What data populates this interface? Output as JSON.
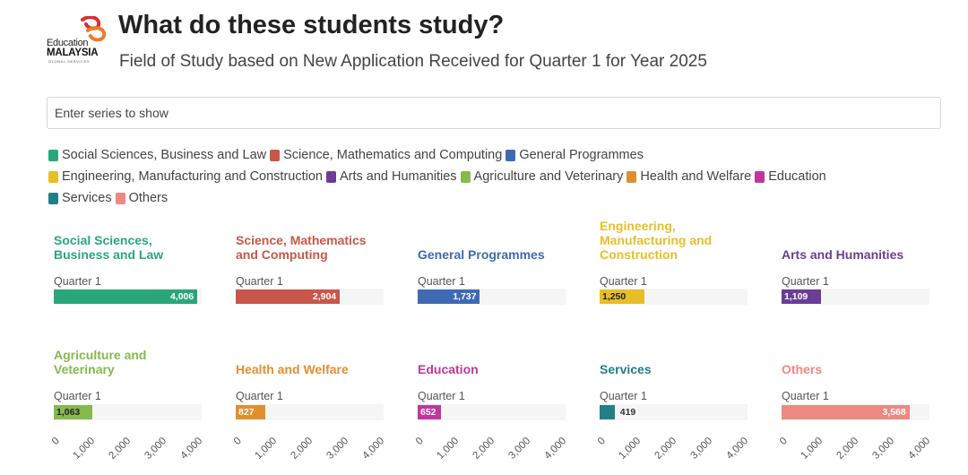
{
  "header": {
    "logo_line1": "Education",
    "logo_line2": "MALAYSIA",
    "logo_line3": "GLOBAL SERVICES",
    "title": "What do these students study?",
    "subtitle": "Field of Study based on New Application Received for Quarter 1 for Year 2025"
  },
  "search": {
    "placeholder": "Enter series to show"
  },
  "legend": [
    {
      "label": "Social Sciences, Business and Law",
      "color": "#2aa67a"
    },
    {
      "label": "Science, Mathematics and Computing",
      "color": "#c8574a"
    },
    {
      "label": "General Programmes",
      "color": "#3d6ab3"
    },
    {
      "label": "Engineering, Manufacturing and Construction",
      "color": "#e8be28"
    },
    {
      "label": "Arts and Humanities",
      "color": "#6b3d96"
    },
    {
      "label": "Agriculture and Veterinary",
      "color": "#86b94e"
    },
    {
      "label": "Health and Welfare",
      "color": "#e08f2f"
    },
    {
      "label": "Education",
      "color": "#c2359e"
    },
    {
      "label": "Services",
      "color": "#227f86"
    },
    {
      "label": "Others",
      "color": "#ec8a82"
    }
  ],
  "chart_data": {
    "type": "bar",
    "orientation": "horizontal",
    "title": "What do these students study?",
    "subtitle": "Field of Study based on New Application Received for Quarter 1 for Year 2025",
    "category": "Quarter 1",
    "xlim": [
      0,
      4000
    ],
    "x_ticks": [
      "0",
      "1,000",
      "2,000",
      "3,000",
      "4,000"
    ],
    "series": [
      {
        "name": "Social Sciences, Business and Law",
        "title_lines": [
          "Social Sciences,",
          "Business and Law"
        ],
        "value": 4006,
        "label": "4,006",
        "color": "#2aa67a",
        "label_color": "#ffffff"
      },
      {
        "name": "Science, Mathematics and Computing",
        "title_lines": [
          "Science, Mathematics",
          "and Computing"
        ],
        "value": 2904,
        "label": "2,904",
        "color": "#c8574a",
        "label_color": "#ffffff"
      },
      {
        "name": "General Programmes",
        "title_lines": [
          "General Programmes"
        ],
        "value": 1737,
        "label": "1,737",
        "color": "#3d6ab3",
        "label_color": "#ffffff"
      },
      {
        "name": "Engineering, Manufacturing and Construction",
        "title_lines": [
          "Engineering,",
          "Manufacturing and",
          "Construction"
        ],
        "value": 1250,
        "label": "1,250",
        "color": "#e8be28",
        "label_color": "#222222"
      },
      {
        "name": "Arts and Humanities",
        "title_lines": [
          "Arts and Humanities"
        ],
        "value": 1109,
        "label": "1,109",
        "color": "#6b3d96",
        "label_color": "#ffffff"
      },
      {
        "name": "Agriculture and Veterinary",
        "title_lines": [
          "Agriculture and",
          "Veterinary"
        ],
        "value": 1063,
        "label": "1,063",
        "color": "#86b94e",
        "label_color": "#222222"
      },
      {
        "name": "Health and Welfare",
        "title_lines": [
          "Health and Welfare"
        ],
        "value": 827,
        "label": "827",
        "color": "#e08f2f",
        "label_color": "#ffffff"
      },
      {
        "name": "Education",
        "title_lines": [
          "Education"
        ],
        "value": 652,
        "label": "652",
        "color": "#c2359e",
        "label_color": "#ffffff"
      },
      {
        "name": "Services",
        "title_lines": [
          "Services"
        ],
        "value": 419,
        "label": "419",
        "color": "#227f86",
        "label_color": "#333333"
      },
      {
        "name": "Others",
        "title_lines": [
          "Others"
        ],
        "value": 3568,
        "label": "3,568",
        "color": "#ec8a82",
        "label_color": "#ffffff"
      }
    ]
  }
}
